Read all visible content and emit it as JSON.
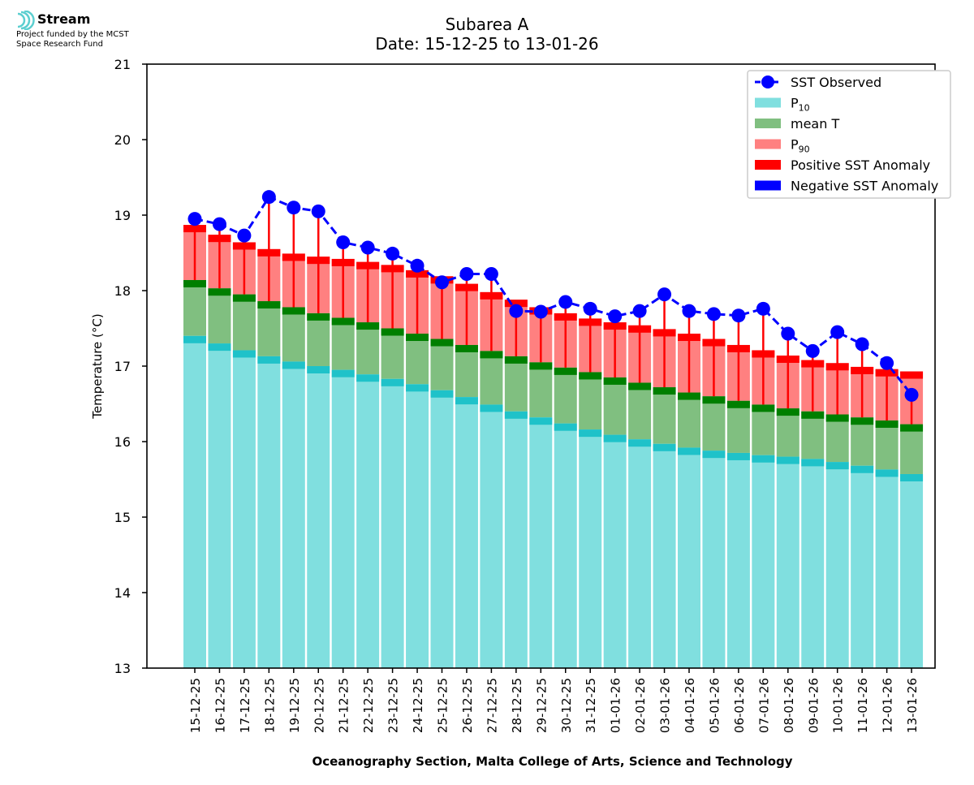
{
  "header": {
    "brand_name": "Stream",
    "brand_line1": "Project funded by the MCST",
    "brand_line2": "Space Research Fund",
    "logo_icon": "stream-wave-icon",
    "logo_color": "#5ccfd0"
  },
  "chart_data": {
    "type": "bar",
    "title": "Subarea A",
    "subtitle": "Date: 15-12-25 to 13-01-26",
    "xlabel": "Oceanography Section, Malta College of Arts, Science and Technology",
    "ylabel": "Temperature (°C)",
    "ylim": [
      13,
      21
    ],
    "yticks": [
      13,
      14,
      15,
      16,
      17,
      18,
      19,
      20,
      21
    ],
    "grid": false,
    "legend_position": "top-right",
    "categories": [
      "15-12-25",
      "16-12-25",
      "17-12-25",
      "18-12-25",
      "19-12-25",
      "20-12-25",
      "21-12-25",
      "22-12-25",
      "23-12-25",
      "24-12-25",
      "25-12-25",
      "26-12-25",
      "27-12-25",
      "28-12-25",
      "29-12-25",
      "30-12-25",
      "31-12-25",
      "01-01-26",
      "02-01-26",
      "03-01-26",
      "04-01-26",
      "05-01-26",
      "06-01-26",
      "07-01-26",
      "08-01-26",
      "09-01-26",
      "10-01-26",
      "11-01-26",
      "12-01-26",
      "13-01-26"
    ],
    "series": [
      {
        "name": "P10",
        "color": "#80dfdf",
        "edge_color": "#1fc2c9",
        "values": [
          17.4,
          17.3,
          17.21,
          17.13,
          17.06,
          17.0,
          16.95,
          16.89,
          16.83,
          16.76,
          16.68,
          16.59,
          16.49,
          16.4,
          16.32,
          16.24,
          16.16,
          16.09,
          16.03,
          15.97,
          15.92,
          15.88,
          15.85,
          15.82,
          15.8,
          15.77,
          15.73,
          15.68,
          15.63,
          15.57
        ]
      },
      {
        "name": "mean T",
        "color": "#80bf80",
        "edge_color": "#007f00",
        "values": [
          18.14,
          18.03,
          17.95,
          17.86,
          17.78,
          17.7,
          17.64,
          17.58,
          17.5,
          17.43,
          17.36,
          17.28,
          17.2,
          17.13,
          17.05,
          16.98,
          16.92,
          16.85,
          16.78,
          16.72,
          16.65,
          16.6,
          16.54,
          16.49,
          16.44,
          16.4,
          16.36,
          16.32,
          16.28,
          16.23
        ]
      },
      {
        "name": "P90",
        "color": "#ff8080",
        "edge_color": "#ff0000",
        "values": [
          18.87,
          18.74,
          18.64,
          18.55,
          18.49,
          18.45,
          18.42,
          18.38,
          18.34,
          18.27,
          18.19,
          18.09,
          17.98,
          17.88,
          17.78,
          17.7,
          17.63,
          17.58,
          17.54,
          17.49,
          17.43,
          17.36,
          17.28,
          17.21,
          17.14,
          17.08,
          17.04,
          16.99,
          16.96,
          16.93
        ]
      },
      {
        "name": "SST Observed",
        "color": "#0000ff",
        "values": [
          18.95,
          18.88,
          18.73,
          19.24,
          19.1,
          19.05,
          18.64,
          18.57,
          18.49,
          18.33,
          18.11,
          18.22,
          18.22,
          17.73,
          17.72,
          17.85,
          17.76,
          17.66,
          17.73,
          17.95,
          17.73,
          17.69,
          17.67,
          17.76,
          17.43,
          17.2,
          17.45,
          17.29,
          17.04,
          16.62
        ]
      }
    ],
    "legend": [
      {
        "label": "SST Observed",
        "kind": "line",
        "color": "#0000ff"
      },
      {
        "label": "P",
        "sub": "10",
        "kind": "patch",
        "color": "#80dfdf"
      },
      {
        "label": "mean T",
        "kind": "patch",
        "color": "#80bf80"
      },
      {
        "label": "P",
        "sub": "90",
        "kind": "patch",
        "color": "#ff8080"
      },
      {
        "label": "Positive SST Anomaly",
        "kind": "patch",
        "color": "#ff0000"
      },
      {
        "label": "Negative SST Anomaly",
        "kind": "patch",
        "color": "#0000ff"
      }
    ],
    "anomaly_colors": {
      "positive": "#ff0000",
      "negative": "#0000ff"
    }
  }
}
